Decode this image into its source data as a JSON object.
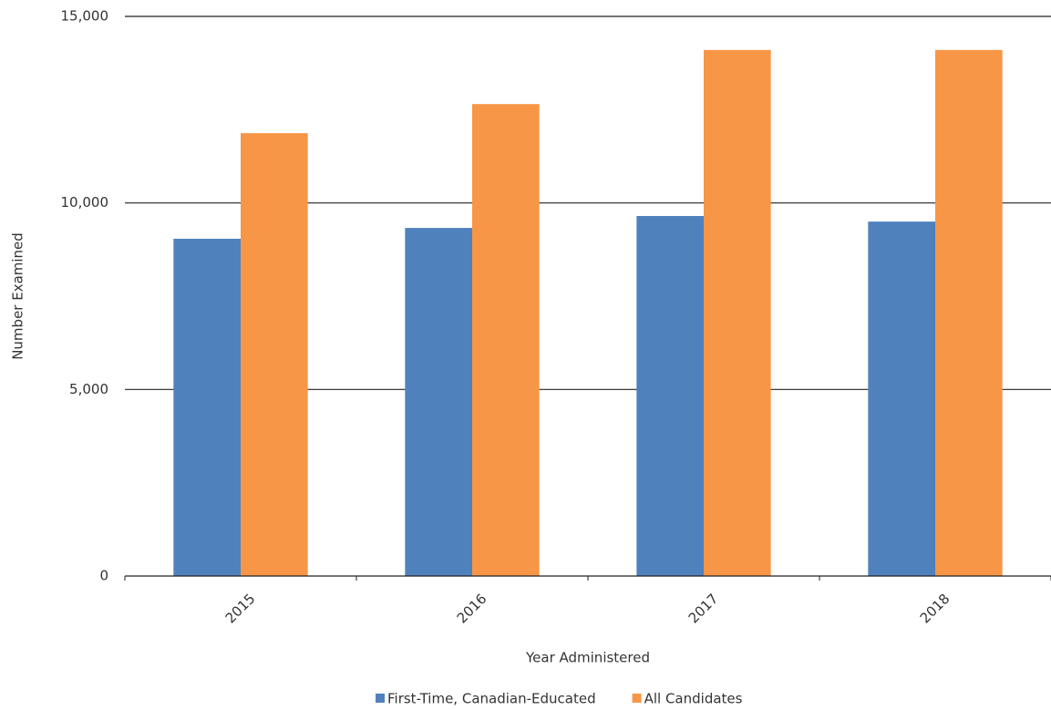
{
  "chart_data": {
    "type": "bar",
    "x_label": "Year Administered",
    "y_label": "Number Examined",
    "categories": [
      "2015",
      "2016",
      "2017",
      "2018"
    ],
    "series": [
      {
        "name": "First-Time, Canadian-Educated",
        "color": "#4f81bd",
        "values": [
          9040,
          9330,
          9650,
          9500
        ]
      },
      {
        "name": "All Candidates",
        "color": "#f79646",
        "values": [
          11870,
          12650,
          14100,
          14100
        ]
      }
    ],
    "ylim": [
      0,
      15000
    ],
    "yticks": [
      0,
      {
        "value": 5000,
        "label": "5,000"
      },
      {
        "value": 10000,
        "label": "10,000"
      },
      {
        "value": 15000,
        "label": "15,000"
      }
    ],
    "grid": true,
    "legend": "bottom"
  }
}
